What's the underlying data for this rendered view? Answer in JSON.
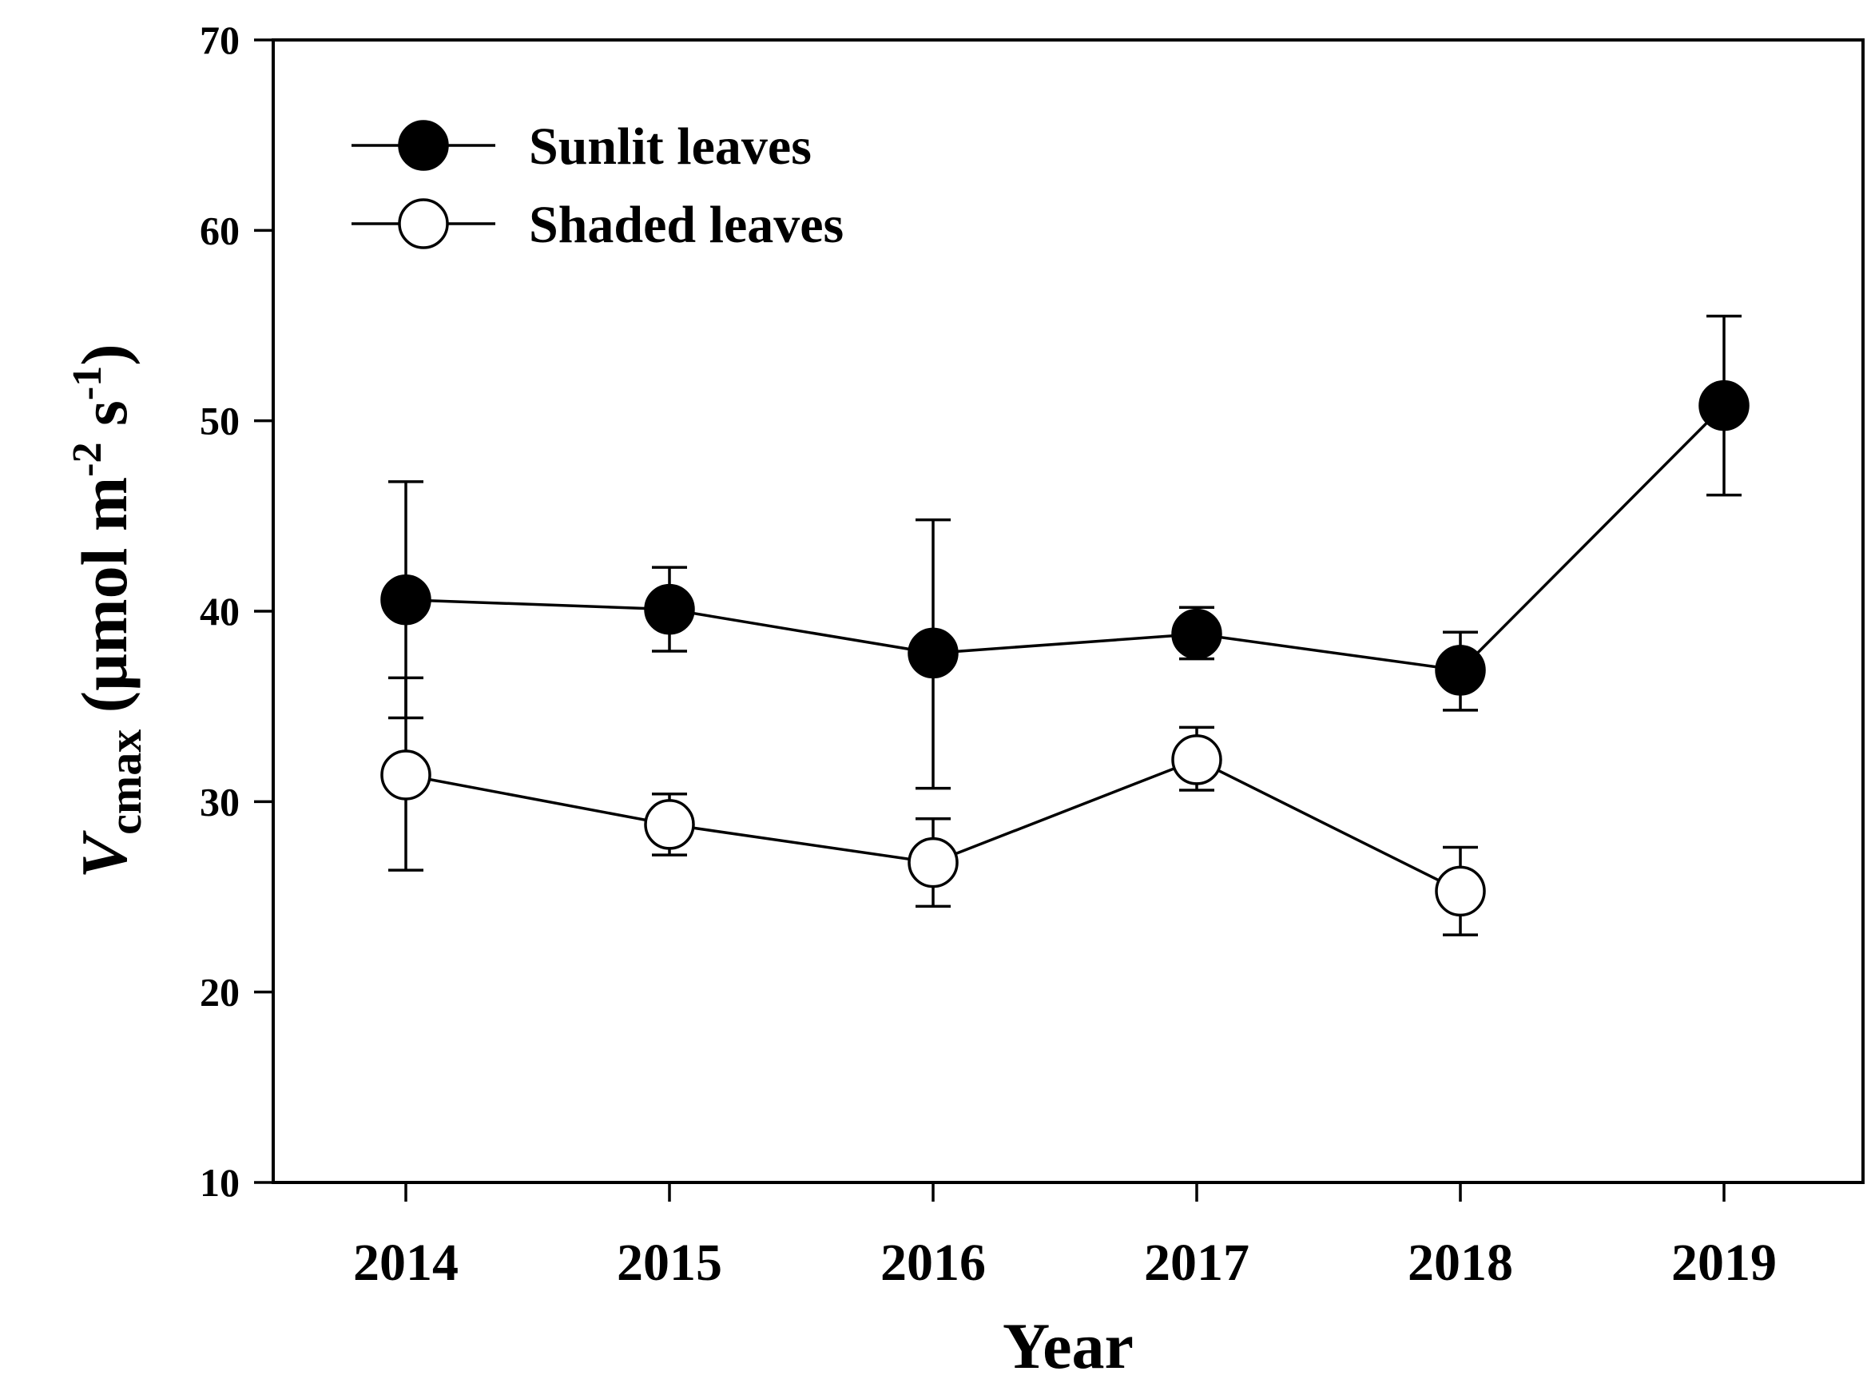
{
  "chart_data": {
    "type": "line",
    "title": "",
    "xlabel": "Year",
    "ylabel": {
      "symbol": "V",
      "subscript": "cmax",
      "units_open": " (µmol m",
      "exp1": "-2",
      "units_mid": " s",
      "exp2": "-1",
      "units_close": ")"
    },
    "categories": [
      "2014",
      "2015",
      "2016",
      "2017",
      "2018",
      "2019"
    ],
    "ylim": [
      10,
      70
    ],
    "yticks": [
      10,
      20,
      30,
      40,
      50,
      60,
      70
    ],
    "legend_position": "top-left",
    "grid": false,
    "series": [
      {
        "name": "Sunlit leaves",
        "marker": "filled-circle",
        "color": "#000000",
        "values": [
          40.6,
          40.1,
          37.8,
          38.8,
          36.9,
          50.8
        ],
        "error_low": [
          34.4,
          37.9,
          30.7,
          37.5,
          34.8,
          46.1
        ],
        "error_high": [
          46.8,
          42.3,
          44.8,
          40.2,
          38.9,
          55.5
        ]
      },
      {
        "name": "Shaded leaves",
        "marker": "open-circle",
        "color": "#000000",
        "values": [
          31.4,
          28.8,
          26.8,
          32.2,
          25.3,
          null
        ],
        "error_low": [
          26.4,
          27.2,
          24.5,
          30.6,
          23.0,
          null
        ],
        "error_high": [
          36.5,
          30.4,
          29.1,
          33.9,
          27.6,
          null
        ]
      }
    ]
  }
}
